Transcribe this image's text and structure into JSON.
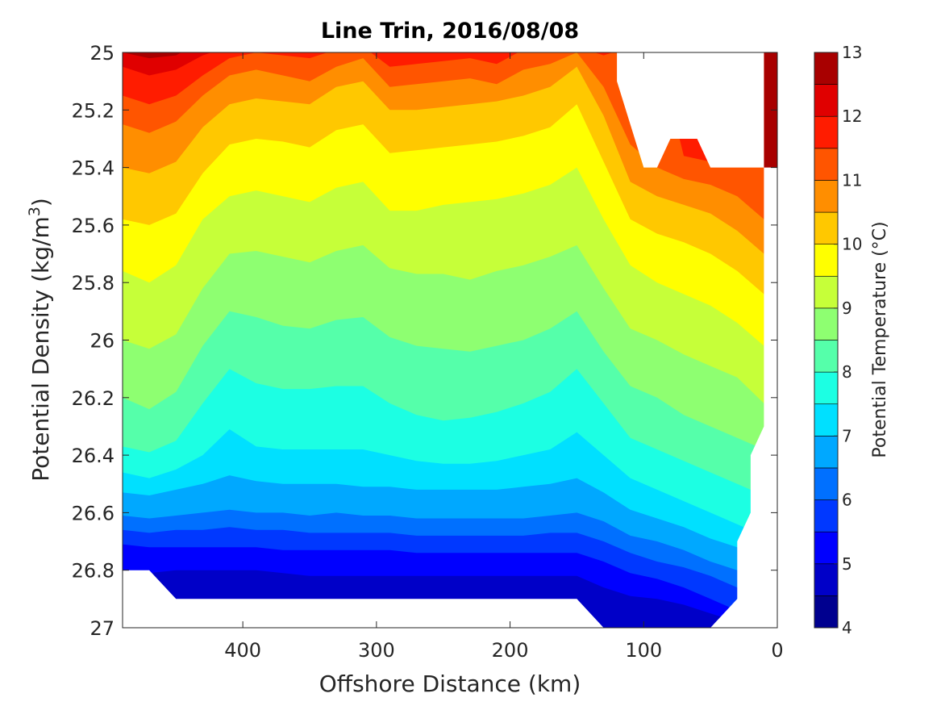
{
  "chart_data": {
    "type": "heatmap",
    "subtype": "filled-contour",
    "title": "Line Trin, 2016/08/08",
    "xlabel": "Offshore Distance (km)",
    "ylabel": "Potential Density (kg/m",
    "ylabel_sup": "3",
    "ylabel_tail": ")",
    "xlim": [
      490,
      0
    ],
    "x_reversed": true,
    "ylim": [
      25,
      27
    ],
    "y_reversed": true,
    "xticks": [
      400,
      300,
      200,
      100,
      0
    ],
    "yticks": [
      25,
      25.2,
      25.4,
      25.6,
      25.8,
      26,
      26.2,
      26.4,
      26.6,
      26.8,
      27
    ],
    "colorbar": {
      "label": "Potential Temperature (°C)",
      "ticks": [
        4,
        5,
        6,
        7,
        8,
        9,
        10,
        11,
        12,
        13
      ],
      "levels": [
        4,
        4.5,
        5,
        5.5,
        6,
        6.5,
        7,
        7.5,
        8,
        8.5,
        9,
        9.5,
        10,
        10.5,
        11,
        11.5,
        12,
        12.5,
        13
      ],
      "colormap": "jet",
      "colors": [
        "#00008f",
        "#0000c8",
        "#0000ff",
        "#0038ff",
        "#0070ff",
        "#00a8ff",
        "#00e0ff",
        "#1cffe3",
        "#55ffaa",
        "#8eff71",
        "#c6ff39",
        "#ffff00",
        "#ffc800",
        "#ff8e00",
        "#ff5500",
        "#ff1c00",
        "#e00000",
        "#a80000"
      ]
    },
    "x": [
      490,
      470,
      450,
      430,
      410,
      390,
      370,
      350,
      330,
      310,
      290,
      270,
      250,
      230,
      210,
      190,
      170,
      150,
      130,
      110,
      90,
      70,
      50,
      30,
      10
    ],
    "isotherms": [
      {
        "T": 12.5,
        "sigma": [
          25.0,
          25.02,
          25.01,
          24.96,
          24.96,
          24.96,
          24.96,
          24.96,
          24.96,
          24.96,
          24.96,
          24.96,
          24.96,
          24.96,
          24.96,
          24.96,
          24.96,
          24.96,
          24.96,
          24.96,
          24.96,
          24.96,
          24.96,
          24.96,
          24.96
        ]
      },
      {
        "T": 12.0,
        "sigma": [
          25.05,
          25.08,
          25.06,
          25.01,
          24.98,
          24.98,
          24.98,
          24.98,
          24.98,
          24.98,
          24.98,
          24.98,
          24.98,
          24.98,
          24.98,
          24.98,
          24.98,
          24.98,
          24.98,
          24.98,
          24.98,
          25.3,
          24.98,
          24.98,
          24.98
        ]
      },
      {
        "T": 11.5,
        "sigma": [
          25.15,
          25.18,
          25.15,
          25.08,
          25.02,
          25.0,
          25.01,
          25.02,
          24.99,
          24.98,
          25.05,
          25.04,
          25.03,
          25.02,
          25.04,
          24.99,
          24.98,
          24.98,
          25.01,
          24.98,
          24.98,
          25.36,
          25.38,
          24.98,
          24.98
        ]
      },
      {
        "T": 11.0,
        "sigma": [
          25.25,
          25.28,
          25.24,
          25.15,
          25.08,
          25.06,
          25.08,
          25.1,
          25.05,
          25.02,
          25.12,
          25.11,
          25.1,
          25.09,
          25.11,
          25.06,
          25.04,
          25.0,
          25.12,
          25.32,
          25.4,
          25.44,
          25.46,
          25.5,
          25.58
        ]
      },
      {
        "T": 10.5,
        "sigma": [
          25.4,
          25.42,
          25.38,
          25.26,
          25.18,
          25.16,
          25.17,
          25.18,
          25.12,
          25.1,
          25.2,
          25.2,
          25.19,
          25.18,
          25.17,
          25.15,
          25.12,
          25.05,
          25.22,
          25.45,
          25.5,
          25.53,
          25.56,
          25.62,
          25.7
        ]
      },
      {
        "T": 10.0,
        "sigma": [
          25.58,
          25.6,
          25.56,
          25.42,
          25.32,
          25.3,
          25.31,
          25.33,
          25.27,
          25.25,
          25.35,
          25.34,
          25.33,
          25.32,
          25.31,
          25.29,
          25.26,
          25.18,
          25.38,
          25.58,
          25.63,
          25.66,
          25.7,
          25.76,
          25.84
        ]
      },
      {
        "T": 9.5,
        "sigma": [
          25.76,
          25.8,
          25.74,
          25.58,
          25.5,
          25.48,
          25.5,
          25.52,
          25.47,
          25.45,
          25.55,
          25.55,
          25.53,
          25.52,
          25.51,
          25.49,
          25.46,
          25.4,
          25.58,
          25.74,
          25.8,
          25.84,
          25.88,
          25.94,
          26.02
        ]
      },
      {
        "T": 9.0,
        "sigma": [
          26.0,
          26.03,
          25.98,
          25.82,
          25.7,
          25.69,
          25.71,
          25.73,
          25.69,
          25.67,
          25.75,
          25.77,
          25.77,
          25.79,
          25.76,
          25.74,
          25.71,
          25.67,
          25.82,
          25.96,
          26.0,
          26.05,
          26.09,
          26.13,
          26.22
        ]
      },
      {
        "T": 8.5,
        "sigma": [
          26.2,
          26.24,
          26.18,
          26.02,
          25.9,
          25.92,
          25.95,
          25.96,
          25.93,
          25.92,
          25.99,
          26.02,
          26.03,
          26.04,
          26.02,
          26.0,
          25.96,
          25.9,
          26.04,
          26.16,
          26.2,
          26.26,
          26.3,
          26.34,
          26.38
        ]
      },
      {
        "T": 8.0,
        "sigma": [
          26.37,
          26.39,
          26.35,
          26.22,
          26.1,
          26.15,
          26.17,
          26.17,
          26.16,
          26.16,
          26.22,
          26.26,
          26.28,
          26.27,
          26.25,
          26.22,
          26.18,
          26.1,
          26.22,
          26.34,
          26.38,
          26.42,
          26.46,
          26.5,
          26.54
        ]
      },
      {
        "T": 7.5,
        "sigma": [
          26.46,
          26.48,
          26.45,
          26.4,
          26.31,
          26.37,
          26.38,
          26.38,
          26.38,
          26.38,
          26.4,
          26.42,
          26.43,
          26.43,
          26.42,
          26.4,
          26.38,
          26.32,
          26.4,
          26.48,
          26.52,
          26.56,
          26.6,
          26.64,
          26.68
        ]
      },
      {
        "T": 7.0,
        "sigma": [
          26.53,
          26.54,
          26.52,
          26.5,
          26.47,
          26.49,
          26.5,
          26.5,
          26.5,
          26.51,
          26.51,
          26.52,
          26.52,
          26.52,
          26.52,
          26.51,
          26.5,
          26.48,
          26.53,
          26.59,
          26.62,
          26.65,
          26.69,
          26.72,
          26.76
        ]
      },
      {
        "T": 6.5,
        "sigma": [
          26.61,
          26.62,
          26.61,
          26.6,
          26.59,
          26.6,
          26.6,
          26.61,
          26.6,
          26.61,
          26.61,
          26.62,
          26.62,
          26.62,
          26.62,
          26.62,
          26.61,
          26.6,
          26.63,
          26.68,
          26.7,
          26.73,
          26.77,
          26.8,
          26.84
        ]
      },
      {
        "T": 6.0,
        "sigma": [
          26.66,
          26.67,
          26.66,
          26.66,
          26.65,
          26.66,
          26.66,
          26.67,
          26.67,
          26.67,
          26.67,
          26.68,
          26.68,
          26.68,
          26.68,
          26.68,
          26.67,
          26.67,
          26.7,
          26.74,
          26.77,
          26.79,
          26.82,
          26.86,
          26.9
        ]
      },
      {
        "T": 5.5,
        "sigma": [
          26.71,
          26.72,
          26.72,
          26.72,
          26.72,
          26.72,
          26.73,
          26.73,
          26.73,
          26.73,
          26.73,
          26.74,
          26.74,
          26.74,
          26.74,
          26.74,
          26.74,
          26.74,
          26.77,
          26.81,
          26.83,
          26.86,
          26.9,
          26.94,
          26.98
        ]
      },
      {
        "T": 5.0,
        "sigma": [
          26.8,
          26.81,
          26.8,
          26.8,
          26.8,
          26.8,
          26.81,
          26.82,
          26.82,
          26.82,
          26.82,
          26.82,
          26.82,
          26.82,
          26.82,
          26.82,
          26.82,
          26.82,
          26.86,
          26.89,
          26.9,
          26.92,
          26.95,
          26.98,
          27.02
        ]
      }
    ],
    "bottom_sigma": [
      26.8,
      26.8,
      26.9,
      26.9,
      26.9,
      26.9,
      26.9,
      26.9,
      26.9,
      26.9,
      26.9,
      26.9,
      26.9,
      26.9,
      26.9,
      26.9,
      26.9,
      26.9,
      27.0,
      27.0,
      27.0,
      27.0,
      27.0,
      26.9,
      26.9
    ]
  }
}
